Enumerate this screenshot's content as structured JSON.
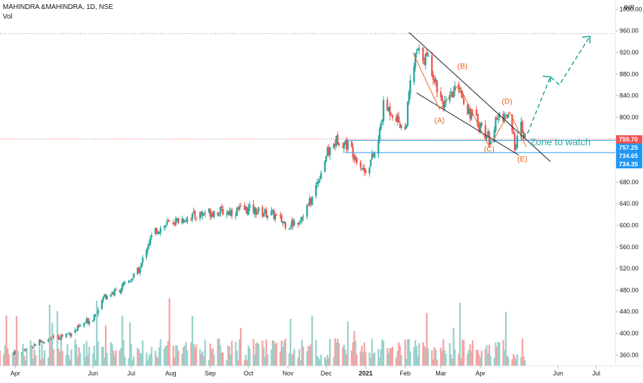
{
  "header": {
    "title": "MAHINDRA &MAHINDRA, 1D, NSE",
    "vol_label": "Vol"
  },
  "currency_label": "INR",
  "colors": {
    "up": "#26a69a",
    "down": "#ef5350",
    "up_volume": "#9ad1cc",
    "down_volume": "#f5a3a3",
    "annotation": "#e8641c",
    "trendline": "#131722",
    "level_line": "#2196f3",
    "last_price": "#ef5350"
  },
  "chart_data": {
    "type": "candlestick",
    "title": "MAHINDRA &MAHINDRA, 1D, NSE",
    "y_axis": {
      "ticks": [
        360,
        400,
        440,
        480,
        520,
        560,
        600,
        640,
        680,
        720,
        760,
        800,
        840,
        880,
        920,
        960,
        1000
      ],
      "tick_labels": [
        "360.00",
        "400.00",
        "440.00",
        "480.00",
        "520.00",
        "560.00",
        "600.00",
        "640.00",
        "680.00",
        "720.00",
        "760.00",
        "800.00",
        "840.00",
        "880.00",
        "920.00",
        "960.00",
        "1000.00"
      ],
      "ylim": [
        340,
        1012
      ]
    },
    "x_axis": {
      "tick_labels": [
        "Apr",
        "Jun",
        "Jul",
        "Aug",
        "Sep",
        "Oct",
        "Nov",
        "Dec",
        "2021",
        "Feb",
        "Mar",
        "Apr",
        "Jun",
        "Jul"
      ],
      "tick_dates": [
        "2020-04-01",
        "2020-06-01",
        "2020-07-01",
        "2020-08-01",
        "2020-09-01",
        "2020-10-01",
        "2020-11-01",
        "2020-12-01",
        "2021-01-01",
        "2021-02-01",
        "2021-03-01",
        "2021-04-01",
        "2021-06-01",
        "2021-07-01"
      ],
      "range": [
        "2020-03-20",
        "2021-07-16"
      ]
    },
    "price_path": [
      [
        "2020-03-20",
        355
      ],
      [
        "2020-04-06",
        365
      ],
      [
        "2020-04-20",
        385
      ],
      [
        "2020-05-04",
        392
      ],
      [
        "2020-05-18",
        405
      ],
      [
        "2020-06-01",
        430
      ],
      [
        "2020-06-10",
        470
      ],
      [
        "2020-06-20",
        478
      ],
      [
        "2020-07-01",
        500
      ],
      [
        "2020-07-08",
        520
      ],
      [
        "2020-07-13",
        560
      ],
      [
        "2020-07-20",
        590
      ],
      [
        "2020-08-01",
        605
      ],
      [
        "2020-08-15",
        615
      ],
      [
        "2020-09-01",
        625
      ],
      [
        "2020-09-15",
        625
      ],
      [
        "2020-10-01",
        630
      ],
      [
        "2020-10-20",
        620
      ],
      [
        "2020-11-01",
        600
      ],
      [
        "2020-11-10",
        610
      ],
      [
        "2020-11-20",
        650
      ],
      [
        "2020-12-01",
        730
      ],
      [
        "2020-12-10",
        760
      ],
      [
        "2020-12-20",
        745
      ],
      [
        "2020-12-31",
        700
      ],
      [
        "2021-01-10",
        740
      ],
      [
        "2021-01-15",
        820
      ],
      [
        "2021-01-22",
        810
      ],
      [
        "2021-02-01",
        775
      ],
      [
        "2021-02-05",
        860
      ],
      [
        "2021-02-10",
        920
      ],
      [
        "2021-02-20",
        905
      ],
      [
        "2021-02-28",
        840
      ],
      [
        "2021-03-05",
        820
      ],
      [
        "2021-03-15",
        860
      ],
      [
        "2021-03-22",
        815
      ],
      [
        "2021-04-01",
        785
      ],
      [
        "2021-04-08",
        760
      ],
      [
        "2021-04-15",
        800
      ],
      [
        "2021-04-22",
        805
      ],
      [
        "2021-04-28",
        750
      ],
      [
        "2021-05-03",
        780
      ],
      [
        "2021-05-06",
        760
      ]
    ],
    "volume_note": "Volume bars (relative height 0-1) derived per day by chart script",
    "price_levels": [
      {
        "label": "759.70",
        "value": 759.7,
        "color": "#ef5350"
      },
      {
        "label": "757.25",
        "value": 757.25,
        "color": "#2196f3"
      },
      {
        "label": "734.65",
        "value": 734.65,
        "color": "#2196f3"
      },
      {
        "label": "734.35",
        "value": 734.35,
        "color": "#2196f3"
      }
    ],
    "dotted_top_level": 955,
    "annotations": {
      "wave_labels": [
        {
          "text": "(A)",
          "date": "2021-02-28",
          "value": 790
        },
        {
          "text": "(B)",
          "date": "2021-03-18",
          "value": 890
        },
        {
          "text": "(C)",
          "date": "2021-04-08",
          "value": 737
        },
        {
          "text": "(D)",
          "date": "2021-04-22",
          "value": 825
        },
        {
          "text": "(E)",
          "date": "2021-05-04",
          "value": 718
        }
      ],
      "zone_text": "Zone to watch"
    }
  }
}
